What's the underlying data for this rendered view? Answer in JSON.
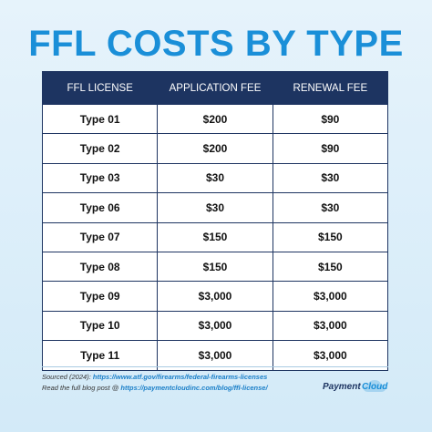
{
  "header": {
    "title": "FFL COSTS BY TYPE"
  },
  "table": {
    "columns": [
      "FFL LICENSE",
      "APPLICATION FEE",
      "RENEWAL FEE"
    ],
    "rows": [
      [
        "Type 01",
        "$200",
        "$90"
      ],
      [
        "Type 02",
        "$200",
        "$90"
      ],
      [
        "Type 03",
        "$30",
        "$30"
      ],
      [
        "Type 06",
        "$30",
        "$30"
      ],
      [
        "Type 07",
        "$150",
        "$150"
      ],
      [
        "Type 08",
        "$150",
        "$150"
      ],
      [
        "Type 09",
        "$3,000",
        "$3,000"
      ],
      [
        "Type 10",
        "$3,000",
        "$3,000"
      ],
      [
        "Type 11",
        "$3,000",
        "$3,000"
      ]
    ]
  },
  "footer": {
    "source_label": "Sourced (2024): ",
    "source_url": "https://www.atf.gov/firearms/federal-firearms-licenses",
    "blog_label": "Read the full blog post @ ",
    "blog_url": "https://paymentcloudinc.com/blog/ffl-license/",
    "logo_word1": "Payment",
    "logo_word2": "Cloud"
  }
}
